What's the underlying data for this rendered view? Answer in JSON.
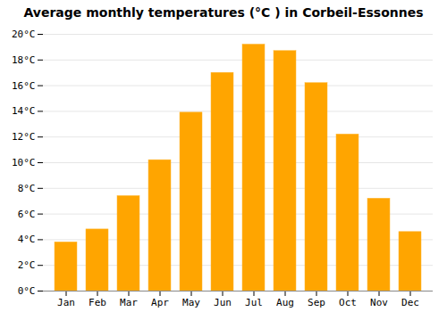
{
  "chart_data": {
    "type": "bar",
    "title": "Average monthly temperatures (°C ) in Corbeil-Essonnes",
    "categories": [
      "Jan",
      "Feb",
      "Mar",
      "Apr",
      "May",
      "Jun",
      "Jul",
      "Aug",
      "Sep",
      "Oct",
      "Nov",
      "Dec"
    ],
    "values": [
      3.8,
      4.8,
      7.4,
      10.2,
      13.9,
      17.0,
      19.2,
      18.7,
      16.2,
      12.2,
      7.2,
      4.6
    ],
    "color": "#FFA500",
    "ylim": [
      0,
      20
    ],
    "yticks": [
      {
        "value": 0,
        "label": "0°C"
      },
      {
        "value": 2,
        "label": "2°C"
      },
      {
        "value": 4,
        "label": "4°C"
      },
      {
        "value": 6,
        "label": "6°C"
      },
      {
        "value": 8,
        "label": "8°C"
      },
      {
        "value": 10,
        "label": "10°C"
      },
      {
        "value": 12,
        "label": "12°C"
      },
      {
        "value": 14,
        "label": "14°C"
      },
      {
        "value": 16,
        "label": "16°C"
      },
      {
        "value": 18,
        "label": "18°C"
      },
      {
        "value": 20,
        "label": "20°C"
      }
    ],
    "grid": true
  }
}
